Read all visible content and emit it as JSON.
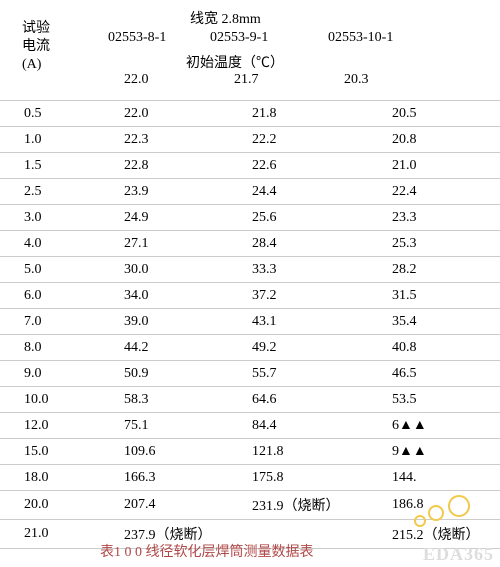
{
  "header": {
    "test_label_l1": "试验",
    "test_label_l2": "电流",
    "test_label_l3": "(A)",
    "line_width_label": "线宽",
    "line_width_value": "2.8mm",
    "samples": [
      "02553-8-1",
      "02553-9-1",
      "02553-10-1"
    ],
    "initial_temp_label": "初始温度（℃）",
    "initial_temps": [
      "22.0",
      "21.7",
      "20.3"
    ]
  },
  "table": {
    "type": "table",
    "columns": [
      "current_A",
      "sample_02553-8-1_C",
      "sample_02553-9-1_C",
      "sample_02553-10-1_C"
    ],
    "border_color": "#cccccc",
    "fontsize_pt": 12,
    "rows": [
      {
        "current": "0.5",
        "c1": "22.0",
        "c2": "21.8",
        "c3": "20.5"
      },
      {
        "current": "1.0",
        "c1": "22.3",
        "c2": "22.2",
        "c3": "20.8"
      },
      {
        "current": "1.5",
        "c1": "22.8",
        "c2": "22.6",
        "c3": "21.0"
      },
      {
        "current": "2.5",
        "c1": "23.9",
        "c2": "24.4",
        "c3": "22.4"
      },
      {
        "current": "3.0",
        "c1": "24.9",
        "c2": "25.6",
        "c3": "23.3"
      },
      {
        "current": "4.0",
        "c1": "27.1",
        "c2": "28.4",
        "c3": "25.3"
      },
      {
        "current": "5.0",
        "c1": "30.0",
        "c2": "33.3",
        "c3": "28.2"
      },
      {
        "current": "6.0",
        "c1": "34.0",
        "c2": "37.2",
        "c3": "31.5"
      },
      {
        "current": "7.0",
        "c1": "39.0",
        "c2": "43.1",
        "c3": "35.4"
      },
      {
        "current": "8.0",
        "c1": "44.2",
        "c2": "49.2",
        "c3": "40.8"
      },
      {
        "current": "9.0",
        "c1": "50.9",
        "c2": "55.7",
        "c3": "46.5"
      },
      {
        "current": "10.0",
        "c1": "58.3",
        "c2": "64.6",
        "c3": "53.5"
      },
      {
        "current": "12.0",
        "c1": "75.1",
        "c2": "84.4",
        "c3": "6▲▲"
      },
      {
        "current": "15.0",
        "c1": "109.6",
        "c2": "121.8",
        "c3": "9▲▲"
      },
      {
        "current": "18.0",
        "c1": "166.3",
        "c2": "175.8",
        "c3": "144."
      },
      {
        "current": "20.0",
        "c1": "207.4",
        "c2": "231.9（烧断）",
        "c3": "186.8"
      },
      {
        "current": "21.0",
        "c1": "237.9（烧断）",
        "c2": "",
        "c3": "215.2（烧断）"
      }
    ]
  },
  "footer": {
    "caption": "表1 0 0    线径软化层焊筒测量数据表"
  },
  "watermark": {
    "text": "EDA365"
  },
  "colors": {
    "text": "#000000",
    "border": "#cccccc",
    "caption": "#b04848",
    "watermark": "#dddddd",
    "deco": "#f2c94c",
    "background": "#ffffff"
  }
}
